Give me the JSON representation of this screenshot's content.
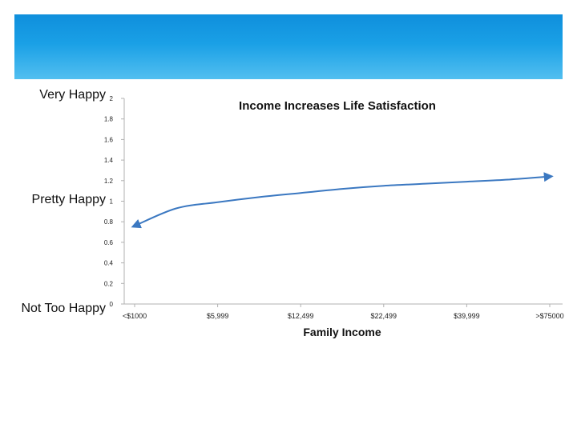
{
  "chart_data": {
    "type": "line",
    "title": "Income Increases Life Satisfaction",
    "xlabel": "Family Income",
    "ylabel": "",
    "ylim": [
      0,
      2
    ],
    "yticks": [
      "0",
      "0.2",
      "0.4",
      "0.6",
      "0.8",
      "1",
      "1.2",
      "1.4",
      "1.6",
      "1.8",
      "2"
    ],
    "categories": [
      "<$1000",
      "$5,999",
      "$12,499",
      "$22,499",
      "$39,999",
      ">$75000"
    ],
    "series": [
      {
        "x": [
          0,
          0.5,
          1,
          1.5,
          2,
          2.5,
          3,
          3.5,
          4,
          4.5,
          5
        ],
        "values": [
          0.76,
          0.93,
          0.99,
          1.04,
          1.08,
          1.12,
          1.15,
          1.17,
          1.19,
          1.21,
          1.24
        ]
      }
    ],
    "grid": false,
    "legend": "none",
    "line_color": "#3b78c1"
  },
  "happiness_labels": {
    "very_happy": "Very Happy",
    "pretty_happy": "Pretty Happy",
    "not_too_happy": "Not Too Happy"
  },
  "colors": {
    "header_top": "#0f8fdc",
    "header_bottom": "#52bff0",
    "axis": "#b0b0b0"
  }
}
